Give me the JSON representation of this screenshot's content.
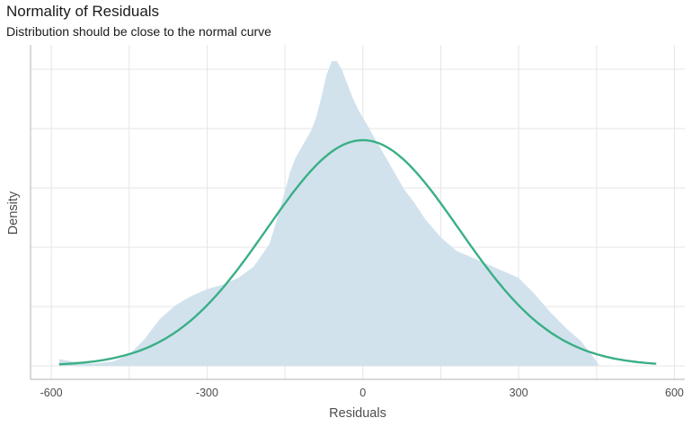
{
  "chart_data": {
    "type": "area",
    "title": "Normality of Residuals",
    "subtitle": "Distribution should be close to the normal curve",
    "xlabel": "Residuals",
    "ylabel": "Density",
    "xlim": [
      -640,
      620
    ],
    "ylim": [
      0,
      1.05
    ],
    "x_ticks": [
      -600,
      -300,
      0,
      300,
      600
    ],
    "x_tick_labels": [
      "-600",
      "-300",
      "0",
      "300",
      "600"
    ],
    "grid": true,
    "y_tick_labels_shown": false,
    "colors": {
      "density_fill": "#cfe0ec",
      "normal_curve": "#3aaf85",
      "grid": "#e6e6e6"
    },
    "series": [
      {
        "kind": "empirical-density",
        "x": [
          -585,
          -560,
          -520,
          -480,
          -450,
          -420,
          -390,
          -360,
          -330,
          -300,
          -270,
          -240,
          -210,
          -180,
          -160,
          -140,
          -130,
          -120,
          -110,
          -100,
          -90,
          -80,
          -70,
          -60,
          -50,
          -40,
          -30,
          -20,
          -10,
          0,
          10,
          20,
          30,
          40,
          50,
          60,
          70,
          80,
          100,
          120,
          150,
          180,
          210,
          240,
          270,
          300,
          330,
          360,
          390,
          420,
          450,
          455
        ],
        "y": [
          0.03,
          0.02,
          0.01,
          0.02,
          0.05,
          0.12,
          0.21,
          0.27,
          0.31,
          0.34,
          0.36,
          0.39,
          0.44,
          0.54,
          0.69,
          0.86,
          0.92,
          0.96,
          1.0,
          1.04,
          1.1,
          1.19,
          1.29,
          1.35,
          1.35,
          1.31,
          1.25,
          1.19,
          1.14,
          1.1,
          1.06,
          1.02,
          0.98,
          0.94,
          0.9,
          0.86,
          0.82,
          0.78,
          0.72,
          0.65,
          0.57,
          0.51,
          0.48,
          0.45,
          0.42,
          0.39,
          0.32,
          0.24,
          0.17,
          0.11,
          0.02,
          0.0
        ]
      },
      {
        "kind": "normal-curve",
        "mean": 0,
        "sd": 185,
        "x_range": [
          -585,
          565
        ],
        "peak_density": 1.0
      }
    ]
  }
}
